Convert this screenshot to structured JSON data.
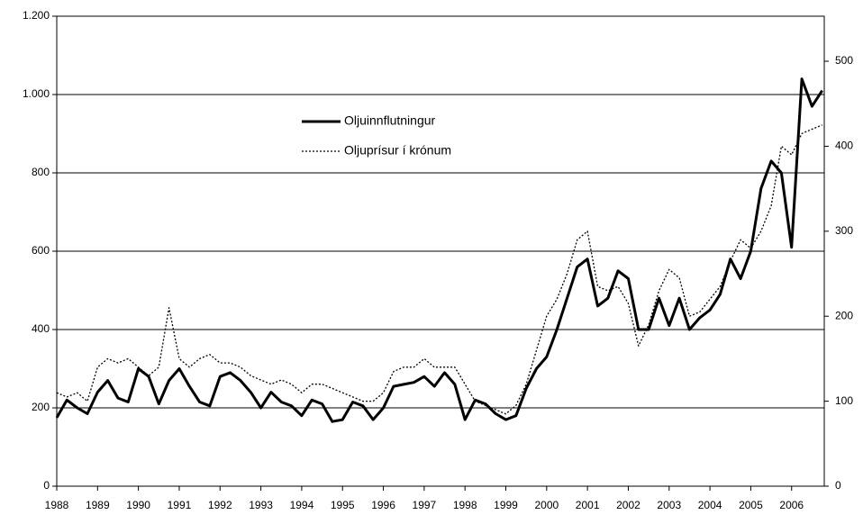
{
  "chart_data": {
    "type": "line",
    "x": [
      1988,
      1988.25,
      1988.5,
      1988.75,
      1989,
      1989.25,
      1989.5,
      1989.75,
      1990,
      1990.25,
      1990.5,
      1990.75,
      1991,
      1991.25,
      1991.5,
      1991.75,
      1992,
      1992.25,
      1992.5,
      1992.75,
      1993,
      1993.25,
      1993.5,
      1993.75,
      1994,
      1994.25,
      1994.5,
      1994.75,
      1995,
      1995.25,
      1995.5,
      1995.75,
      1996,
      1996.25,
      1996.5,
      1996.75,
      1997,
      1997.25,
      1997.5,
      1997.75,
      1998,
      1998.25,
      1998.5,
      1998.75,
      1999,
      1999.25,
      1999.5,
      1999.75,
      2000,
      2000.25,
      2000.5,
      2000.75,
      2001,
      2001.25,
      2001.5,
      2001.75,
      2002,
      2002.25,
      2002.5,
      2002.75,
      2003,
      2003.25,
      2003.5,
      2003.75,
      2004,
      2004.25,
      2004.5,
      2004.75,
      2005,
      2005.25,
      2005.5,
      2005.75,
      2006,
      2006.25,
      2006.5,
      2006.75
    ],
    "series": [
      {
        "name": "Oljuinnflutningur",
        "color": "#000000",
        "values": [
          175,
          220,
          200,
          185,
          240,
          270,
          225,
          215,
          300,
          280,
          210,
          270,
          300,
          255,
          215,
          205,
          280,
          290,
          270,
          240,
          200,
          240,
          215,
          205,
          180,
          220,
          210,
          165,
          170,
          215,
          205,
          170,
          200,
          255,
          260,
          265,
          280,
          255,
          290,
          260,
          170,
          220,
          210,
          185,
          170,
          180,
          250,
          300,
          330,
          400,
          480,
          560,
          580,
          460,
          480,
          550,
          530,
          400,
          400,
          480,
          410,
          480,
          400,
          430,
          450,
          490,
          580,
          530,
          600,
          760,
          830,
          800,
          610,
          1040,
          970,
          1010
        ]
      },
      {
        "name": "Oljuprísur í krónum",
        "color": "#000000",
        "axis": "y2",
        "values": [
          110,
          105,
          110,
          100,
          140,
          150,
          145,
          150,
          140,
          130,
          140,
          210,
          150,
          140,
          150,
          155,
          145,
          145,
          140,
          130,
          125,
          120,
          125,
          120,
          110,
          120,
          120,
          115,
          110,
          105,
          100,
          100,
          110,
          135,
          140,
          140,
          150,
          140,
          140,
          140,
          120,
          100,
          95,
          90,
          85,
          95,
          120,
          160,
          200,
          220,
          250,
          290,
          300,
          235,
          230,
          235,
          215,
          165,
          190,
          230,
          255,
          245,
          200,
          205,
          220,
          235,
          265,
          290,
          280,
          300,
          330,
          400,
          390,
          415,
          420,
          425
        ]
      }
    ],
    "xlim": [
      1988,
      2006.8
    ],
    "xticks": [
      1988,
      1989,
      1990,
      1991,
      1992,
      1993,
      1994,
      1995,
      1996,
      1997,
      1998,
      1999,
      2000,
      2001,
      2002,
      2003,
      2004,
      2005,
      2006
    ],
    "ylim": [
      0,
      1200
    ],
    "yticks": [
      0,
      200,
      400,
      600,
      800,
      {
        "value": 1000,
        "label": "1.000"
      },
      {
        "value": 1200,
        "label": "1.200"
      }
    ],
    "y2lim": [
      0,
      553
    ],
    "y2ticks": [
      0,
      100,
      200,
      300,
      400,
      500
    ],
    "grid": true
  }
}
